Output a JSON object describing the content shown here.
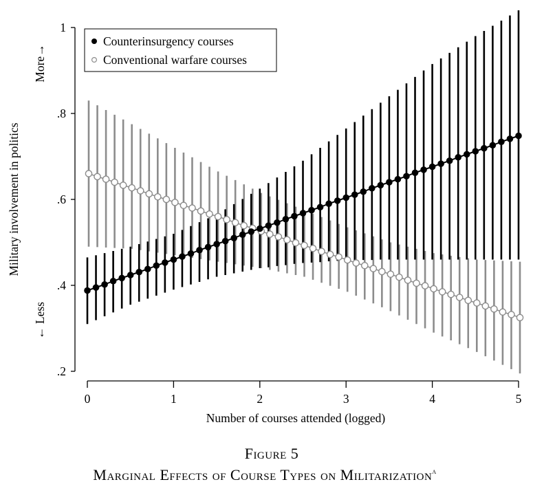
{
  "chart_data": {
    "type": "scatter",
    "subtype": "point-estimates-with-confidence-intervals",
    "caption_number": "Figure 5",
    "title": "Marginal Effects of Course Types on Militarization",
    "title_superscript": "a",
    "xlabel": "Number of courses attended (logged)",
    "ylabel": "Military involvement in politics",
    "ylabel_more": "More→",
    "ylabel_less": "← Less",
    "xlim": [
      0,
      5
    ],
    "ylim": [
      0.2,
      1.0
    ],
    "xticks": [
      0,
      1,
      2,
      3,
      4,
      5
    ],
    "xtick_labels": [
      "0",
      "1",
      "2",
      "3",
      "4",
      "5"
    ],
    "yticks": [
      0.2,
      0.4,
      0.6,
      0.8,
      1.0
    ],
    "ytick_labels": [
      ".2",
      ".4",
      ".6",
      ".8",
      "1"
    ],
    "grid": false,
    "legend_position": "top-left",
    "x": [
      0,
      0.1,
      0.2,
      0.3,
      0.4,
      0.5,
      0.6,
      0.7,
      0.8,
      0.9,
      1,
      1.1,
      1.2,
      1.3,
      1.4,
      1.5,
      1.6,
      1.7,
      1.8,
      1.9,
      2,
      2.1,
      2.2,
      2.3,
      2.4,
      2.5,
      2.6,
      2.7,
      2.8,
      2.9,
      3,
      3.1,
      3.2,
      3.3,
      3.4,
      3.5,
      3.6,
      3.7,
      3.8,
      3.9,
      4,
      4.1,
      4.2,
      4.3,
      4.4,
      4.5,
      4.6,
      4.7,
      4.8,
      4.9,
      5
    ],
    "series": [
      {
        "name": "Counterinsurgency courses",
        "marker": "filled-circle",
        "color": "#000000",
        "ci_color": "#000000",
        "y": [
          0.388,
          0.395,
          0.402,
          0.41,
          0.417,
          0.424,
          0.431,
          0.438,
          0.446,
          0.453,
          0.46,
          0.467,
          0.474,
          0.482,
          0.489,
          0.496,
          0.503,
          0.51,
          0.518,
          0.525,
          0.532,
          0.539,
          0.546,
          0.554,
          0.561,
          0.568,
          0.575,
          0.582,
          0.59,
          0.597,
          0.604,
          0.611,
          0.618,
          0.626,
          0.633,
          0.64,
          0.647,
          0.654,
          0.662,
          0.669,
          0.676,
          0.683,
          0.69,
          0.698,
          0.705,
          0.712,
          0.719,
          0.726,
          0.734,
          0.741,
          0.748
        ],
        "ci_low": [
          0.31,
          0.319,
          0.328,
          0.337,
          0.346,
          0.355,
          0.362,
          0.369,
          0.376,
          0.383,
          0.39,
          0.396,
          0.402,
          0.408,
          0.414,
          0.42,
          0.424,
          0.428,
          0.432,
          0.436,
          0.44,
          0.442,
          0.445,
          0.447,
          0.45,
          0.452,
          0.453,
          0.454,
          0.456,
          0.457,
          0.458,
          0.458,
          0.459,
          0.459,
          0.46,
          0.46,
          0.46,
          0.46,
          0.46,
          0.46,
          0.46,
          0.46,
          0.46,
          0.46,
          0.46,
          0.46,
          0.46,
          0.46,
          0.46,
          0.46,
          0.46
        ],
        "ci_high": [
          0.465,
          0.47,
          0.475,
          0.48,
          0.485,
          0.49,
          0.496,
          0.502,
          0.508,
          0.514,
          0.52,
          0.529,
          0.538,
          0.547,
          0.556,
          0.565,
          0.577,
          0.589,
          0.601,
          0.613,
          0.625,
          0.638,
          0.651,
          0.664,
          0.677,
          0.69,
          0.705,
          0.72,
          0.735,
          0.75,
          0.765,
          0.78,
          0.795,
          0.81,
          0.825,
          0.84,
          0.855,
          0.87,
          0.885,
          0.9,
          0.915,
          0.928,
          0.941,
          0.954,
          0.967,
          0.98,
          0.992,
          1.004,
          1.016,
          1.028,
          1.04
        ]
      },
      {
        "name": "Conventional warfare courses",
        "marker": "hollow-circle",
        "color": "#8c8c8c",
        "ci_color": "#8c8c8c",
        "y": [
          0.66,
          0.653,
          0.647,
          0.64,
          0.633,
          0.627,
          0.62,
          0.613,
          0.606,
          0.6,
          0.593,
          0.586,
          0.58,
          0.573,
          0.566,
          0.56,
          0.553,
          0.546,
          0.539,
          0.533,
          0.526,
          0.519,
          0.513,
          0.506,
          0.499,
          0.493,
          0.486,
          0.479,
          0.472,
          0.466,
          0.459,
          0.452,
          0.446,
          0.439,
          0.432,
          0.426,
          0.419,
          0.412,
          0.405,
          0.399,
          0.392,
          0.385,
          0.379,
          0.372,
          0.365,
          0.359,
          0.352,
          0.345,
          0.338,
          0.332,
          0.325
        ],
        "ci_low": [
          0.49,
          0.489,
          0.488,
          0.487,
          0.486,
          0.485,
          0.482,
          0.479,
          0.476,
          0.473,
          0.47,
          0.467,
          0.464,
          0.461,
          0.458,
          0.455,
          0.452,
          0.449,
          0.446,
          0.443,
          0.44,
          0.436,
          0.432,
          0.428,
          0.424,
          0.42,
          0.413,
          0.406,
          0.399,
          0.392,
          0.385,
          0.376,
          0.367,
          0.358,
          0.349,
          0.34,
          0.33,
          0.32,
          0.31,
          0.3,
          0.29,
          0.281,
          0.272,
          0.263,
          0.254,
          0.245,
          0.235,
          0.225,
          0.215,
          0.205,
          0.195
        ],
        "ci_high": [
          0.83,
          0.819,
          0.808,
          0.797,
          0.786,
          0.775,
          0.764,
          0.753,
          0.742,
          0.731,
          0.72,
          0.709,
          0.698,
          0.687,
          0.676,
          0.665,
          0.655,
          0.645,
          0.635,
          0.625,
          0.615,
          0.607,
          0.599,
          0.591,
          0.583,
          0.575,
          0.567,
          0.559,
          0.551,
          0.543,
          0.535,
          0.528,
          0.521,
          0.514,
          0.507,
          0.5,
          0.495,
          0.49,
          0.485,
          0.48,
          0.475,
          0.472,
          0.469,
          0.466,
          0.463,
          0.46,
          0.459,
          0.458,
          0.457,
          0.456,
          0.455
        ]
      }
    ]
  }
}
